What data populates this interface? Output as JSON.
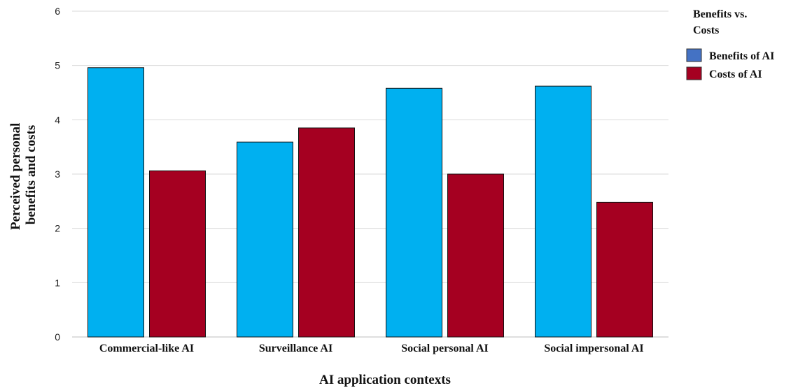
{
  "chart_data": {
    "type": "bar",
    "categories": [
      "Commercial-like AI",
      "Surveillance AI",
      "Social personal AI",
      "Social impersonal AI"
    ],
    "series": [
      {
        "name": "Benefits of AI",
        "color": "#00b0f0",
        "legend_color": "#4472c4",
        "values": [
          4.96,
          3.59,
          4.58,
          4.62
        ]
      },
      {
        "name": "Costs of AI",
        "color": "#a50021",
        "legend_color": "#a50021",
        "values": [
          3.06,
          3.85,
          3.0,
          2.48
        ]
      }
    ],
    "xlabel": "AI application contexts",
    "ylabel_lines": [
      "Perceived personal",
      "benefits and costs"
    ],
    "ylim": [
      0,
      6
    ],
    "yticks": [
      0,
      1,
      2,
      3,
      4,
      5,
      6
    ],
    "grid": true,
    "legend": {
      "title_lines": [
        "Benefits vs.",
        "Costs"
      ],
      "position": "top-right"
    }
  }
}
